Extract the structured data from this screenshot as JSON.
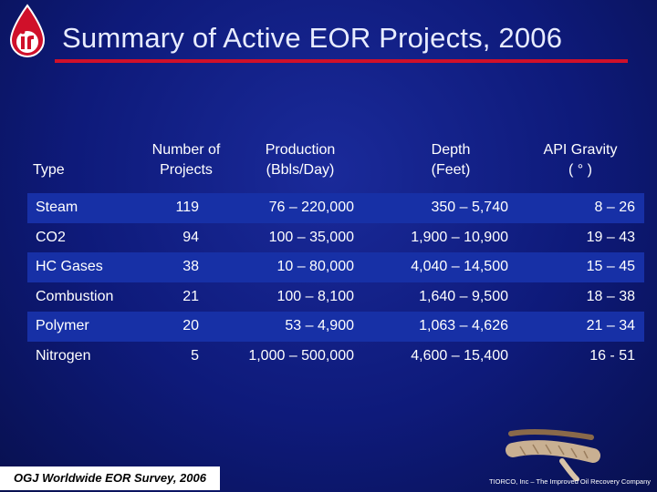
{
  "slide": {
    "title": "Summary of Active EOR Projects, 2006",
    "source": "OGJ Worldwide EOR Survey, 2006",
    "footer": "TIORCO, Inc – The Improved Oil Recovery Company"
  },
  "table": {
    "headers": {
      "type": "Type",
      "number_line1": "Number of",
      "number_line2": "Projects",
      "production_line1": "Production",
      "production_line2": "(Bbls/Day)",
      "depth_line1": "Depth",
      "depth_line2": "(Feet)",
      "api_line1": "API Gravity",
      "api_line2": "( ° )"
    },
    "rows": [
      {
        "type": "Steam",
        "number": "119",
        "production": "76 – 220,000",
        "depth": "350 – 5,740",
        "api": "8 – 26"
      },
      {
        "type": "CO2",
        "number": "94",
        "production": "100 – 35,000",
        "depth": "1,900 – 10,900",
        "api": "19 – 43"
      },
      {
        "type": "HC Gases",
        "number": "38",
        "production": "10 – 80,000",
        "depth": "4,040 – 14,500",
        "api": "15 – 45"
      },
      {
        "type": "Combustion",
        "number": "21",
        "production": "100 – 8,100",
        "depth": "1,640 – 9,500",
        "api": "18 – 38"
      },
      {
        "type": "Polymer",
        "number": "20",
        "production": "53 – 4,900",
        "depth": "1,063 – 4,626",
        "api": "21 – 34"
      },
      {
        "type": "Nitrogen",
        "number": "5",
        "production": "1,000 – 500,000",
        "depth": "4,600 – 15,400",
        "api": "16 - 51"
      }
    ]
  },
  "colors": {
    "background": "#0e1a7a",
    "row_shade": "#1730a6",
    "accent_red": "#d0102a"
  },
  "icons": [
    "company-logo-icon",
    "rope-icon"
  ]
}
